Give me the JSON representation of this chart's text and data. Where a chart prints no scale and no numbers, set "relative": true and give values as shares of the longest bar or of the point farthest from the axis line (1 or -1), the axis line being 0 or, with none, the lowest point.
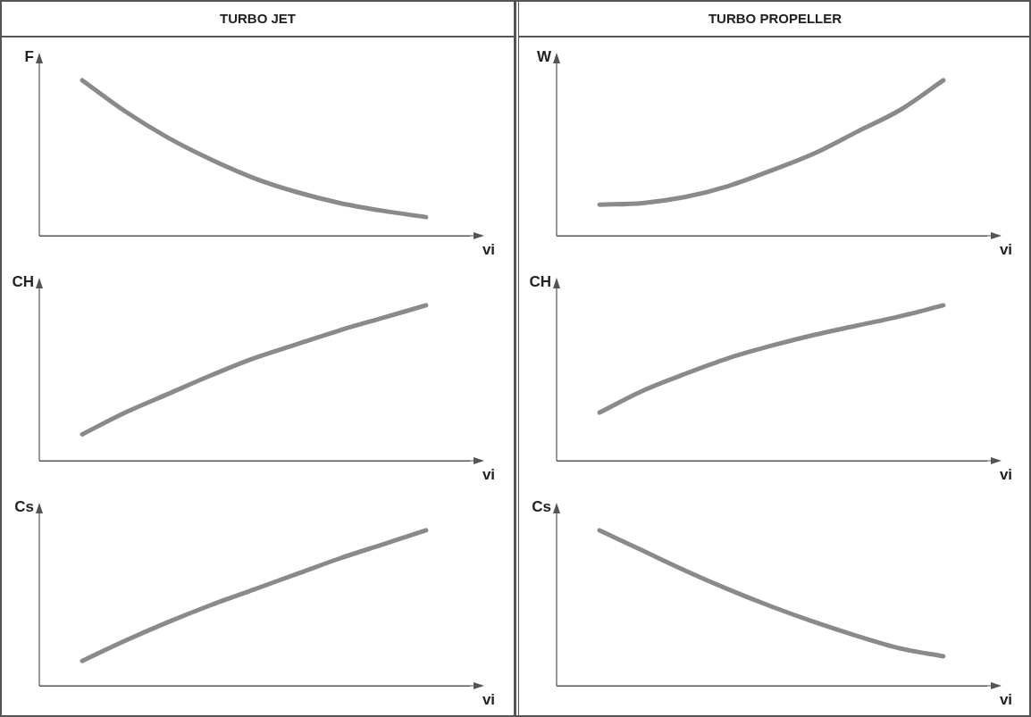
{
  "chart_data": [
    {
      "type": "line",
      "title": "TURBO JET",
      "ylabel": "F",
      "xlabel": "vi",
      "relative": true,
      "categories": [
        null,
        null,
        null,
        null,
        null,
        null,
        null,
        null,
        null,
        null,
        null
      ],
      "series": [
        {
          "color": "#8a8a8a",
          "values": [
            null,
            1,
            0.8,
            0.63,
            0.49,
            0.37,
            0.28,
            0.21,
            0.16,
            0.12,
            null
          ]
        }
      ]
    },
    {
      "type": "line",
      "ylabel": "CH",
      "xlabel": "vi",
      "relative": true,
      "categories": [
        null,
        null,
        null,
        null,
        null,
        null,
        null,
        null,
        null,
        null,
        null
      ],
      "series": [
        {
          "color": "#8a8a8a",
          "values": [
            null,
            0.17,
            0.31,
            0.43,
            0.55,
            0.66,
            0.75,
            0.84,
            0.92,
            1,
            null
          ]
        }
      ]
    },
    {
      "type": "line",
      "ylabel": "Cs",
      "xlabel": "vi",
      "relative": true,
      "categories": [
        null,
        null,
        null,
        null,
        null,
        null,
        null,
        null,
        null,
        null,
        null
      ],
      "series": [
        {
          "color": "#8a8a8a",
          "values": [
            null,
            0.16,
            0.29,
            0.41,
            0.52,
            0.62,
            0.72,
            0.82,
            0.91,
            1,
            null
          ]
        }
      ]
    },
    {
      "type": "line",
      "title": "TURBO PROPELLER",
      "ylabel": "W",
      "xlabel": "vi",
      "relative": true,
      "categories": [
        null,
        null,
        null,
        null,
        null,
        null,
        null,
        null,
        null,
        null,
        null
      ],
      "series": [
        {
          "color": "#8a8a8a",
          "values": [
            null,
            0.2,
            0.21,
            0.25,
            0.32,
            0.42,
            0.53,
            0.67,
            0.81,
            1,
            null
          ]
        }
      ]
    },
    {
      "type": "line",
      "ylabel": "CH",
      "xlabel": "vi",
      "relative": true,
      "categories": [
        null,
        null,
        null,
        null,
        null,
        null,
        null,
        null,
        null,
        null,
        null
      ],
      "series": [
        {
          "color": "#8a8a8a",
          "values": [
            null,
            0.31,
            0.45,
            0.56,
            0.66,
            0.74,
            0.81,
            0.87,
            0.93,
            1,
            null
          ]
        }
      ]
    },
    {
      "type": "line",
      "ylabel": "Cs",
      "xlabel": "vi",
      "relative": true,
      "categories": [
        null,
        null,
        null,
        null,
        null,
        null,
        null,
        null,
        null,
        null,
        null
      ],
      "series": [
        {
          "color": "#8a8a8a",
          "values": [
            null,
            1,
            0.87,
            0.74,
            0.62,
            0.51,
            0.41,
            0.32,
            0.24,
            0.19,
            null
          ]
        }
      ]
    }
  ]
}
